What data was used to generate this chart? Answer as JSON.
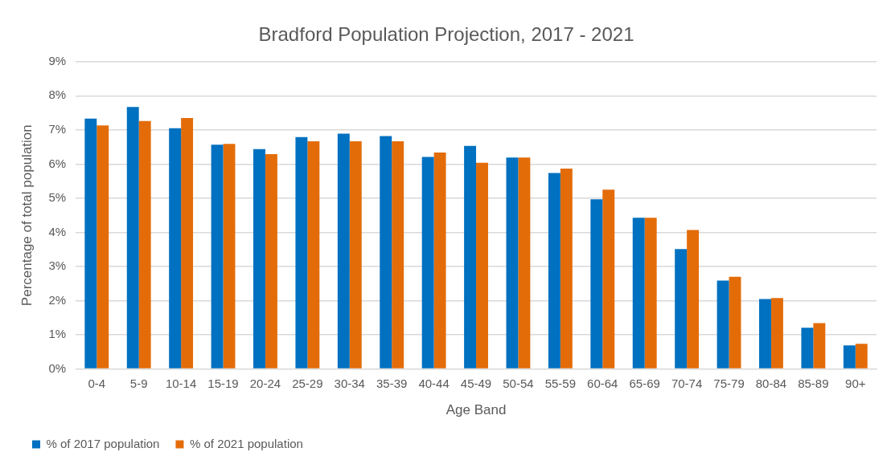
{
  "chart_data": {
    "type": "bar",
    "title": "Bradford Population Projection, 2017 - 2021",
    "xlabel": "Age Band",
    "ylabel": "Percentage of total population",
    "categories": [
      "0-4",
      "5-9",
      "10-14",
      "15-19",
      "20-24",
      "25-29",
      "30-34",
      "35-39",
      "40-44",
      "45-49",
      "50-54",
      "55-59",
      "60-64",
      "65-69",
      "70-74",
      "75-79",
      "80-84",
      "85-89",
      "90+"
    ],
    "series": [
      {
        "name": "% of 2017 population",
        "color": "#0070c0",
        "values": [
          7.33,
          7.67,
          7.05,
          6.57,
          6.44,
          6.79,
          6.89,
          6.82,
          6.21,
          6.53,
          6.19,
          5.74,
          4.97,
          4.43,
          3.51,
          2.59,
          2.05,
          1.21,
          0.69
        ]
      },
      {
        "name": "% of 2021 population",
        "color": "#e36c09",
        "values": [
          7.13,
          7.26,
          7.35,
          6.59,
          6.29,
          6.67,
          6.67,
          6.67,
          6.34,
          6.04,
          6.19,
          5.87,
          5.25,
          4.43,
          4.07,
          2.7,
          2.08,
          1.34,
          0.74
        ]
      }
    ],
    "ylim": [
      0,
      9
    ],
    "yticks": [
      {
        "value": 0,
        "label": "0%"
      },
      {
        "value": 1,
        "label": "1%"
      },
      {
        "value": 2,
        "label": "2%"
      },
      {
        "value": 3,
        "label": "3%"
      },
      {
        "value": 4,
        "label": "4%"
      },
      {
        "value": 5,
        "label": "5%"
      },
      {
        "value": 6,
        "label": "6%"
      },
      {
        "value": 7,
        "label": "7%"
      },
      {
        "value": 8,
        "label": "8%"
      },
      {
        "value": 9,
        "label": "9%"
      }
    ],
    "grid": "y",
    "legend": "bottom left"
  }
}
